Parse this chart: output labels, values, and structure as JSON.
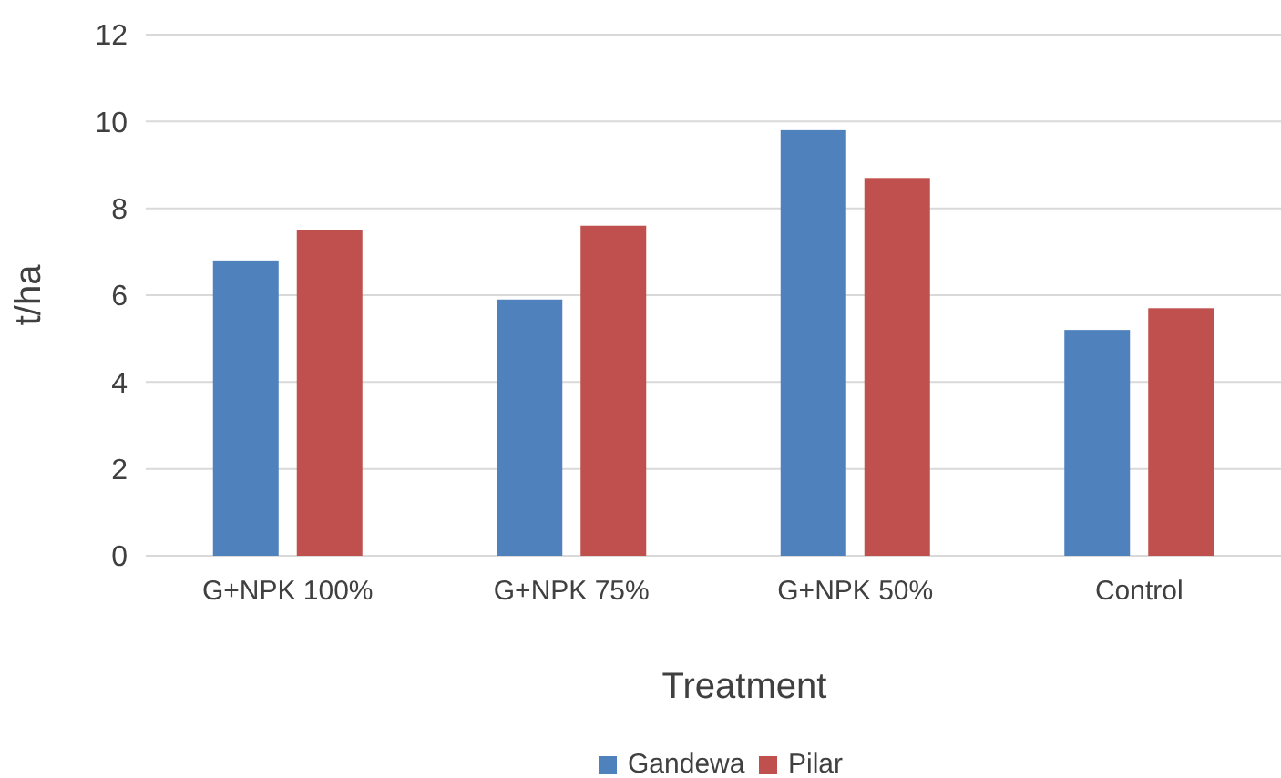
{
  "chart_data": {
    "type": "bar",
    "xlabel": "Treatment",
    "ylabel": "t/ha",
    "categories": [
      "G+NPK 100%",
      "G+NPK 75%",
      "G+NPK 50%",
      "Control"
    ],
    "series": [
      {
        "name": "Gandewa",
        "color": "#4f81bd",
        "values": [
          6.8,
          5.9,
          9.8,
          5.2
        ]
      },
      {
        "name": "Pilar",
        "color": "#c0504d",
        "values": [
          7.5,
          7.6,
          8.7,
          5.7
        ]
      }
    ],
    "ylim": [
      0,
      12
    ],
    "yticks": [
      0,
      2,
      4,
      6,
      8,
      10,
      12
    ],
    "grid": "y",
    "legend": "bottom"
  }
}
